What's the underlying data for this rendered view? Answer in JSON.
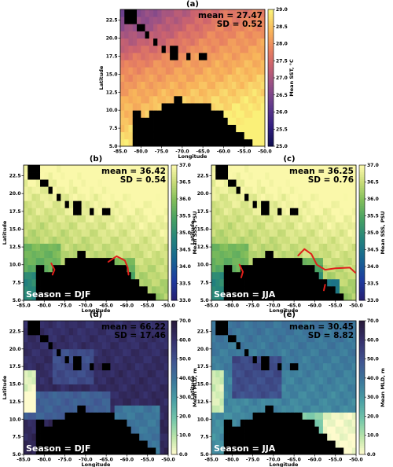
{
  "colors": {
    "land": "#000000",
    "sal_line": "#e0201b"
  },
  "chart_data": [
    {
      "type": "heatmap",
      "panel_label": "(a)",
      "field": "sst",
      "stats": {
        "mean": "mean = 27.47",
        "sd": "SD = 0.52"
      },
      "season": "",
      "xlabel": "Longitude",
      "ylabel": "Latitude",
      "colorbar_label": "Mean SST, °C",
      "xlim": [
        -85,
        -50
      ],
      "ylim": [
        5,
        24
      ],
      "x_ticks": [
        "-85.0",
        "-80.0",
        "-75.0",
        "-70.0",
        "-65.0",
        "-60.0",
        "-55.0",
        "-50.0"
      ],
      "y_ticks": [
        "5.0",
        "7.5",
        "10.0",
        "12.5",
        "15.0",
        "17.5",
        "20.0",
        "22.5"
      ],
      "colorbar_range": [
        25.0,
        29.0
      ],
      "colorbar_ticks": [
        "25.0",
        "25.5",
        "26.0",
        "26.5",
        "27.0",
        "27.5",
        "28.0",
        "28.5",
        "29.0"
      ],
      "colormap": "thermal"
    },
    {
      "type": "heatmap",
      "panel_label": "(b)",
      "field": "sss_djf",
      "stats": {
        "mean": "mean = 36.42",
        "sd": "SD = 0.54"
      },
      "season": "Season = DJF",
      "xlabel": "Longitude",
      "ylabel": "Latitude",
      "colorbar_label": "Mean SSS, PSU",
      "xlim": [
        -85,
        -50
      ],
      "ylim": [
        5,
        24
      ],
      "x_ticks": [
        "-85.0",
        "-80.0",
        "-75.0",
        "-70.0",
        "-65.0",
        "-60.0",
        "-55.0",
        "-50.0"
      ],
      "y_ticks": [
        "5.0",
        "7.5",
        "10.0",
        "12.5",
        "15.0",
        "17.5",
        "20.0",
        "22.5"
      ],
      "colorbar_range": [
        33.0,
        37.0
      ],
      "colorbar_ticks": [
        "33.0",
        "33.5",
        "34.0",
        "34.5",
        "35.0",
        "35.5",
        "36.0",
        "36.5",
        "37.0"
      ],
      "colormap": "haline"
    },
    {
      "type": "heatmap",
      "panel_label": "(c)",
      "field": "sss_jja",
      "stats": {
        "mean": "mean = 36.25",
        "sd": "SD = 0.76"
      },
      "season": "Season = JJA",
      "xlabel": "Longitude",
      "ylabel": "Latitude",
      "colorbar_label": "Mean SSS, PSU",
      "xlim": [
        -85,
        -50
      ],
      "ylim": [
        5,
        24
      ],
      "x_ticks": [
        "-85.0",
        "-80.0",
        "-75.0",
        "-70.0",
        "-65.0",
        "-60.0",
        "-55.0",
        "-50.0"
      ],
      "y_ticks": [
        "5.0",
        "7.5",
        "10.0",
        "12.5",
        "15.0",
        "17.5",
        "20.0",
        "22.5"
      ],
      "colorbar_range": [
        33.0,
        37.0
      ],
      "colorbar_ticks": [
        "33.0",
        "33.5",
        "34.0",
        "34.5",
        "35.0",
        "35.5",
        "36.0",
        "36.5",
        "37.0"
      ],
      "colormap": "haline"
    },
    {
      "type": "heatmap",
      "panel_label": "(d)",
      "field": "mld_djf",
      "stats": {
        "mean": "mean = 66.22",
        "sd": "SD = 17.46"
      },
      "season": "Season = DJF",
      "xlabel": "Longitude",
      "ylabel": "Latitude",
      "colorbar_label": "Mean MLD, m",
      "xlim": [
        -85,
        -50
      ],
      "ylim": [
        5,
        24
      ],
      "x_ticks": [
        "-85.0",
        "-80.0",
        "-75.0",
        "-70.0",
        "-65.0",
        "-60.0",
        "-55.0",
        "-50.0"
      ],
      "y_ticks": [
        "5.0",
        "7.5",
        "10.0",
        "12.5",
        "15.0",
        "17.5",
        "20.0",
        "22.5"
      ],
      "colorbar_range": [
        0.0,
        70.0
      ],
      "colorbar_ticks": [
        "0.0",
        "10.0",
        "20.0",
        "30.0",
        "40.0",
        "50.0",
        "60.0",
        "70.0"
      ],
      "colormap": "deep"
    },
    {
      "type": "heatmap",
      "panel_label": "(e)",
      "field": "mld_jja",
      "stats": {
        "mean": "mean = 30.45",
        "sd": "SD = 8.82"
      },
      "season": "Season = JJA",
      "xlabel": "Longitude",
      "ylabel": "Latitude",
      "colorbar_label": "Mean MLD, m",
      "xlim": [
        -85,
        -50
      ],
      "ylim": [
        5,
        24
      ],
      "x_ticks": [
        "-85.0",
        "-80.0",
        "-75.0",
        "-70.0",
        "-65.0",
        "-60.0",
        "-55.0",
        "-50.0"
      ],
      "y_ticks": [
        "5.0",
        "7.5",
        "10.0",
        "12.5",
        "15.0",
        "17.5",
        "20.0",
        "22.5"
      ],
      "colorbar_range": [
        0.0,
        70.0
      ],
      "colorbar_ticks": [
        "0.0",
        "10.0",
        "20.0",
        "30.0",
        "40.0",
        "50.0",
        "60.0",
        "70.0"
      ],
      "colormap": "deep"
    }
  ]
}
